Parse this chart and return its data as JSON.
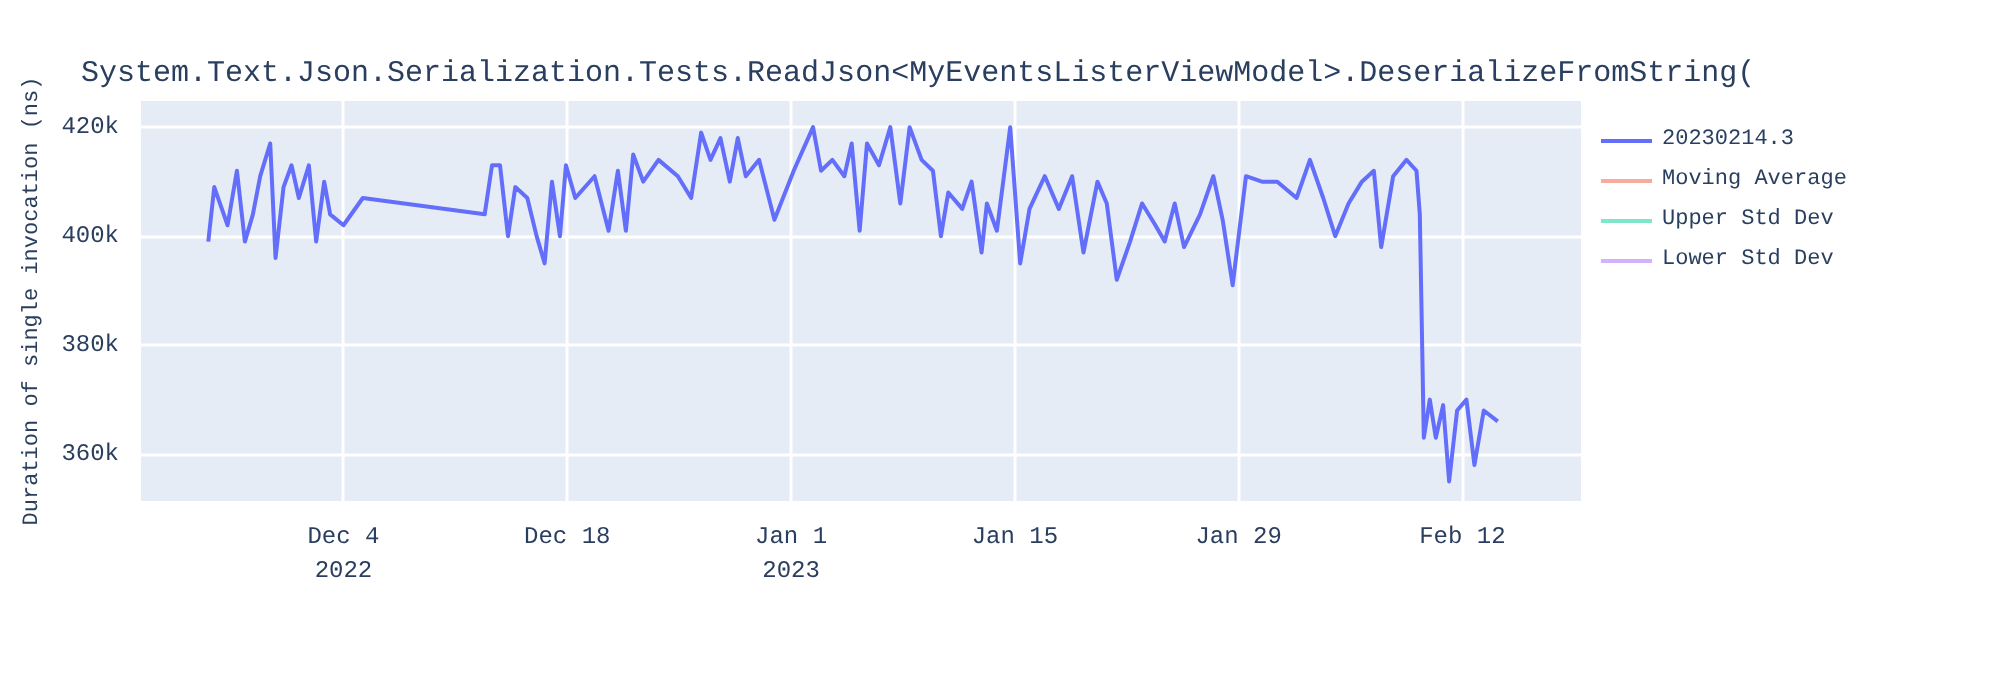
{
  "chart_data": {
    "type": "line",
    "title": "System.Text.Json.Serialization.Tests.ReadJson<MyEventsListerViewModel>.DeserializeFromString(",
    "ylabel": "Duration of single invocation (ns)",
    "x": [
      "2022-11-25T13:00",
      "2022-11-25T22:00",
      "2022-11-26T18:00",
      "2022-11-27T08:00",
      "2022-11-27T20:00",
      "2022-11-28T08:00",
      "2022-11-28T19:00",
      "2022-11-29T10:00",
      "2022-11-29T18:00",
      "2022-11-30T06:00",
      "2022-11-30T18:00",
      "2022-12-01T05:00",
      "2022-12-01T20:00",
      "2022-12-02T07:00",
      "2022-12-02T19:00",
      "2022-12-03T04:00",
      "2022-12-04T00:00",
      "2022-12-05T05:00",
      "2022-12-12T20:00",
      "2022-12-13T07:00",
      "2022-12-13T19:00",
      "2022-12-14T07:00",
      "2022-12-14T18:00",
      "2022-12-15T12:00",
      "2022-12-16T02:00",
      "2022-12-16T14:00",
      "2022-12-17T01:00",
      "2022-12-17T13:00",
      "2022-12-17T22:00",
      "2022-12-18T12:00",
      "2022-12-19T17:00",
      "2022-12-20T14:00",
      "2022-12-21T04:00",
      "2022-12-21T16:00",
      "2022-12-22T03:00",
      "2022-12-22T18:00",
      "2022-12-23T17:00",
      "2022-12-24T22:00",
      "2022-12-25T18:00",
      "2022-12-26T09:00",
      "2022-12-26T23:00",
      "2022-12-27T14:00",
      "2022-12-28T04:00",
      "2022-12-28T16:00",
      "2022-12-29T04:00",
      "2022-12-30T00:00",
      "2022-12-30T23:00",
      "2023-01-01T04:00",
      "2023-01-02T09:00",
      "2023-01-02T21:00",
      "2023-01-03T14:00",
      "2023-01-04T08:00",
      "2023-01-04T19:00",
      "2023-01-05T07:00",
      "2023-01-05T18:00",
      "2023-01-06T12:00",
      "2023-01-07T05:00",
      "2023-01-07T20:00",
      "2023-01-08T10:00",
      "2023-01-09T04:00",
      "2023-01-09T21:00",
      "2023-01-10T09:00",
      "2023-01-10T20:00",
      "2023-01-11T17:00",
      "2023-01-12T07:00",
      "2023-01-12T22:00",
      "2023-01-13T06:00",
      "2023-01-13T21:00",
      "2023-01-14T17:00",
      "2023-01-15T08:00",
      "2023-01-15T22:00",
      "2023-01-16T21:00",
      "2023-01-17T18:00",
      "2023-01-18T14:00",
      "2023-01-19T07:00",
      "2023-01-20T04:00",
      "2023-01-20T18:00",
      "2023-01-21T09:00",
      "2023-01-22T05:00",
      "2023-01-22T23:00",
      "2023-01-23T19:00",
      "2023-01-24T09:00",
      "2023-01-25T00:00",
      "2023-01-25T14:00",
      "2023-01-26T14:00",
      "2023-01-27T10:00",
      "2023-01-28T00:00",
      "2023-01-28T15:00",
      "2023-01-29T11:00",
      "2023-01-30T11:00",
      "2023-01-31T10:00",
      "2023-02-01T15:00",
      "2023-02-02T11:00",
      "2023-02-03T07:00",
      "2023-02-04T01:00",
      "2023-02-04T21:00",
      "2023-02-05T17:00",
      "2023-02-06T11:00",
      "2023-02-06T22:00",
      "2023-02-07T16:00",
      "2023-02-08T12:00",
      "2023-02-09T03:00",
      "2023-02-09T08:00",
      "2023-02-09T14:00",
      "2023-02-09T23:00",
      "2023-02-10T08:00",
      "2023-02-10T19:00",
      "2023-02-11T04:00",
      "2023-02-11T16:00",
      "2023-02-12T06:00",
      "2023-02-12T18:00",
      "2023-02-13T08:00",
      "2023-02-14T05:00"
    ],
    "series": [
      {
        "name": "20230214.3",
        "color": "#636efa",
        "values": [
          399000,
          409000,
          402000,
          412000,
          399000,
          404000,
          411000,
          417000,
          396000,
          409000,
          413000,
          407000,
          413000,
          399000,
          410000,
          404000,
          402000,
          407000,
          404000,
          413000,
          413000,
          400000,
          409000,
          407000,
          400000,
          395000,
          410000,
          400000,
          413000,
          407000,
          411000,
          401000,
          412000,
          401000,
          415000,
          410000,
          414000,
          411000,
          407000,
          419000,
          414000,
          418000,
          410000,
          418000,
          411000,
          414000,
          403000,
          412000,
          420000,
          412000,
          414000,
          411000,
          417000,
          401000,
          417000,
          413000,
          420000,
          406000,
          420000,
          414000,
          412000,
          400000,
          408000,
          405000,
          410000,
          397000,
          406000,
          401000,
          420000,
          395000,
          405000,
          411000,
          405000,
          411000,
          397000,
          410000,
          406000,
          392000,
          399000,
          406000,
          402000,
          399000,
          406000,
          398000,
          404000,
          411000,
          403000,
          391000,
          411000,
          410000,
          410000,
          407000,
          414000,
          407000,
          400000,
          406000,
          410000,
          412000,
          398000,
          411000,
          414000,
          412000,
          404000,
          363000,
          370000,
          363000,
          369000,
          355000,
          368000,
          370000,
          358000,
          368000,
          366000
        ]
      },
      {
        "name": "Moving Average",
        "color": "#f7aa9d",
        "values": [
          null,
          null,
          null,
          null,
          null,
          null,
          null,
          null,
          null,
          null,
          null,
          null,
          null,
          null,
          null,
          null,
          null,
          null,
          null,
          null,
          null,
          null,
          null,
          null,
          null,
          null,
          null,
          null,
          null,
          null,
          null,
          null,
          null,
          null,
          null,
          null,
          null,
          null,
          null,
          null,
          null,
          null,
          null,
          null,
          null,
          null,
          null,
          null,
          null,
          null,
          null,
          null,
          null,
          null,
          null,
          null,
          null,
          null,
          null,
          null,
          null,
          null,
          null,
          null,
          null,
          null,
          null,
          null,
          null,
          null,
          null,
          null,
          null,
          null,
          null,
          null,
          null,
          null,
          null,
          null,
          null,
          null,
          null,
          null,
          null,
          null,
          null,
          null,
          null,
          null,
          null,
          null,
          null,
          null,
          null,
          null,
          null,
          null,
          null,
          null,
          null,
          null,
          null,
          null,
          null,
          null,
          null,
          null,
          null,
          null,
          null,
          null,
          null
        ]
      },
      {
        "name": "Upper Std Dev",
        "color": "#80e6ca",
        "values": [
          null,
          null,
          null,
          null,
          null,
          null,
          null,
          null,
          null,
          null,
          null,
          null,
          null,
          null,
          null,
          null,
          null,
          null,
          null,
          null,
          null,
          null,
          null,
          null,
          null,
          null,
          null,
          null,
          null,
          null,
          null,
          null,
          null,
          null,
          null,
          null,
          null,
          null,
          null,
          null,
          null,
          null,
          null,
          null,
          null,
          null,
          null,
          null,
          null,
          null,
          null,
          null,
          null,
          null,
          null,
          null,
          null,
          null,
          null,
          null,
          null,
          null,
          null,
          null,
          null,
          null,
          null,
          null,
          null,
          null,
          null,
          null,
          null,
          null,
          null,
          null,
          null,
          null,
          null,
          null,
          null,
          null,
          null,
          null,
          null,
          null,
          null,
          null,
          null,
          null,
          null,
          null,
          null,
          null,
          null,
          null,
          null,
          null,
          null,
          null,
          null,
          null,
          null,
          null,
          null,
          null,
          null,
          null,
          null,
          null,
          null,
          null,
          null
        ]
      },
      {
        "name": "Lower Std Dev",
        "color": "#d5b1fd",
        "values": [
          null,
          null,
          null,
          null,
          null,
          null,
          null,
          null,
          null,
          null,
          null,
          null,
          null,
          null,
          null,
          null,
          null,
          null,
          null,
          null,
          null,
          null,
          null,
          null,
          null,
          null,
          null,
          null,
          null,
          null,
          null,
          null,
          null,
          null,
          null,
          null,
          null,
          null,
          null,
          null,
          null,
          null,
          null,
          null,
          null,
          null,
          null,
          null,
          null,
          null,
          null,
          null,
          null,
          null,
          null,
          null,
          null,
          null,
          null,
          null,
          null,
          null,
          null,
          null,
          null,
          null,
          null,
          null,
          null,
          null,
          null,
          null,
          null,
          null,
          null,
          null,
          null,
          null,
          null,
          null,
          null,
          null,
          null,
          null,
          null,
          null,
          null,
          null,
          null,
          null,
          null,
          null,
          null,
          null,
          null,
          null,
          null,
          null,
          null,
          null,
          null,
          null,
          null,
          null,
          null,
          null,
          null,
          null,
          null,
          null,
          null,
          null,
          null
        ]
      }
    ],
    "xlim": [
      "2022-11-21T08:00",
      "2023-02-19T10:00"
    ],
    "xticks": [
      {
        "value": "2022-12-04",
        "label": "Dec 4\n2022"
      },
      {
        "value": "2022-12-18",
        "label": "Dec 18"
      },
      {
        "value": "2023-01-01",
        "label": "Jan 1\n2023"
      },
      {
        "value": "2023-01-15",
        "label": "Jan 15"
      },
      {
        "value": "2023-01-29",
        "label": "Jan 29"
      },
      {
        "value": "2023-02-12",
        "label": "Feb 12"
      }
    ],
    "ylim": [
      351400,
      424800
    ],
    "yticks": [
      {
        "value": 360000,
        "label": "360k"
      },
      {
        "value": 380000,
        "label": "380k"
      },
      {
        "value": 400000,
        "label": "400k"
      },
      {
        "value": 420000,
        "label": "420k"
      }
    ],
    "grid": true,
    "legend": "right",
    "marker": "none",
    "line_style": "solid"
  }
}
